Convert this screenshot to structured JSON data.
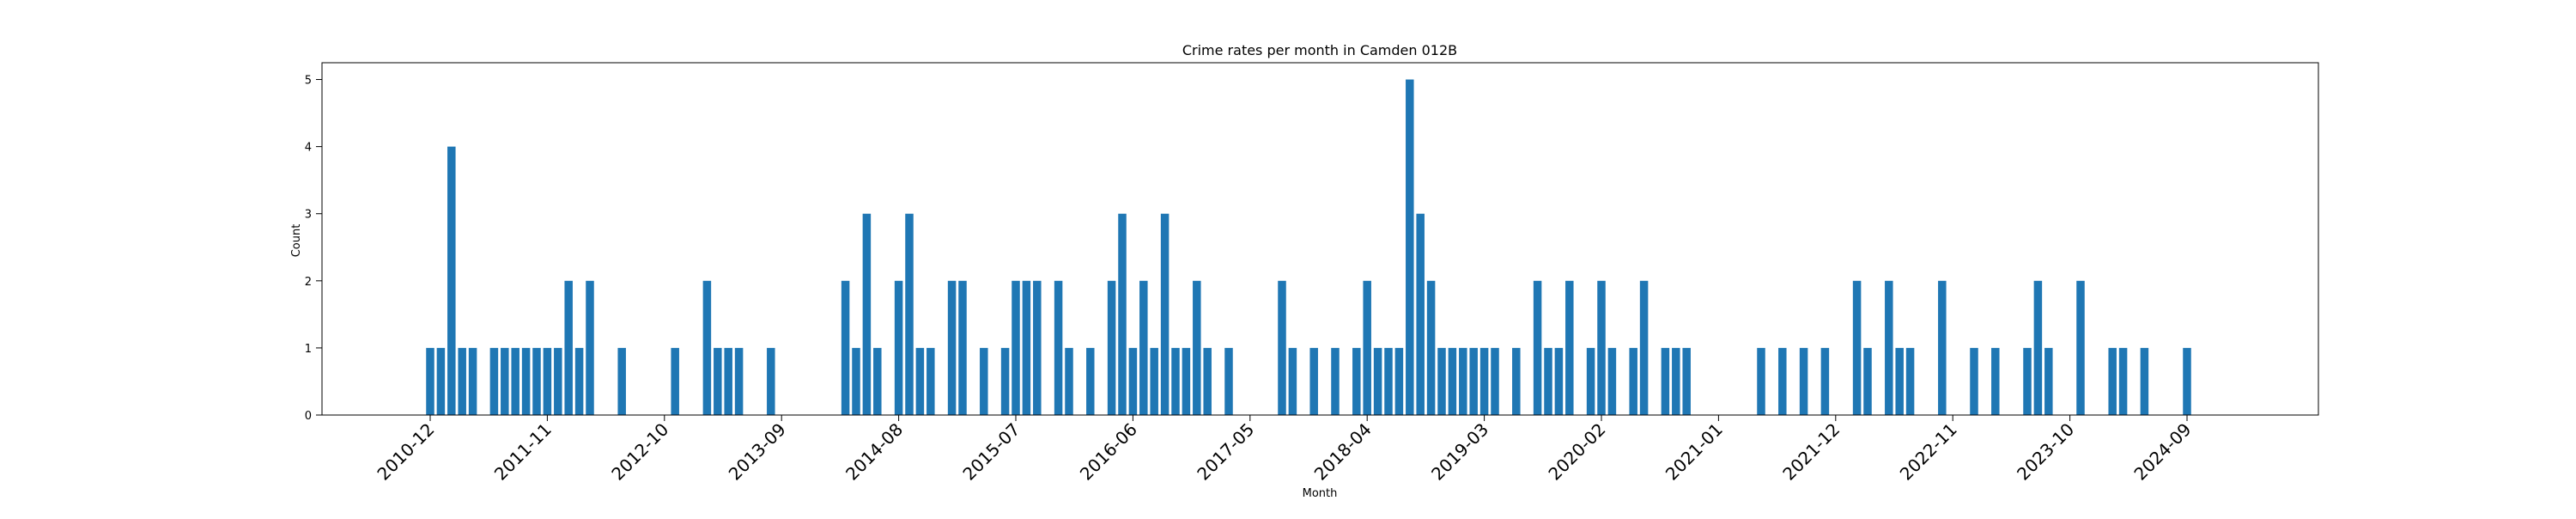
{
  "chart_data": {
    "type": "bar",
    "title": "Crime rates per month in Camden 012B",
    "xlabel": "Month",
    "ylabel": "Count",
    "ylim": [
      0,
      5.25
    ],
    "yticks": [
      0,
      1,
      2,
      3,
      4,
      5
    ],
    "xtick_labels": [
      "2010-12",
      "2011-11",
      "2012-10",
      "2013-09",
      "2014-08",
      "2015-07",
      "2016-06",
      "2017-05",
      "2018-04",
      "2019-03",
      "2020-02",
      "2021-01",
      "2021-12",
      "2022-11",
      "2023-10",
      "2024-09"
    ],
    "color": "#1f77b4",
    "grid": false,
    "series": [
      {
        "months": [
          "2010-12",
          "2011-01",
          "2011-02",
          "2011-03",
          "2011-04",
          "2011-06",
          "2011-07",
          "2011-08",
          "2011-09",
          "2011-10",
          "2011-11",
          "2011-12",
          "2012-01",
          "2012-02",
          "2012-03",
          "2012-06",
          "2012-11",
          "2013-02",
          "2013-03",
          "2013-04",
          "2013-05",
          "2013-08",
          "2014-03",
          "2014-04",
          "2014-05",
          "2014-06",
          "2014-08",
          "2014-09",
          "2014-10",
          "2014-11",
          "2015-01",
          "2015-02",
          "2015-04",
          "2015-06",
          "2015-07",
          "2015-08",
          "2015-09",
          "2015-11",
          "2015-12",
          "2016-02",
          "2016-04",
          "2016-05",
          "2016-06",
          "2016-07",
          "2016-08",
          "2016-09",
          "2016-10",
          "2016-11",
          "2016-12",
          "2017-01",
          "2017-03",
          "2017-08",
          "2017-09",
          "2017-11",
          "2018-01",
          "2018-03",
          "2018-04",
          "2018-05",
          "2018-06",
          "2018-07",
          "2018-08",
          "2018-09",
          "2018-10",
          "2018-11",
          "2018-12",
          "2019-01",
          "2019-02",
          "2019-03",
          "2019-04",
          "2019-06",
          "2019-08",
          "2019-09",
          "2019-10",
          "2019-11",
          "2020-01",
          "2020-02",
          "2020-03",
          "2020-05",
          "2020-06",
          "2020-08",
          "2020-09",
          "2020-10",
          "2021-05",
          "2021-07",
          "2021-09",
          "2021-11",
          "2022-02",
          "2022-03",
          "2022-05",
          "2022-06",
          "2022-07",
          "2022-10",
          "2023-01",
          "2023-03",
          "2023-06",
          "2023-07",
          "2023-08",
          "2023-11",
          "2024-02",
          "2024-03",
          "2024-05",
          "2024-09"
        ],
        "values": [
          1,
          1,
          4,
          1,
          1,
          1,
          1,
          1,
          1,
          1,
          1,
          1,
          2,
          1,
          2,
          1,
          1,
          2,
          1,
          1,
          1,
          1,
          2,
          1,
          3,
          1,
          2,
          3,
          1,
          1,
          2,
          2,
          1,
          1,
          2,
          2,
          2,
          2,
          1,
          1,
          2,
          3,
          1,
          2,
          1,
          3,
          1,
          1,
          2,
          1,
          1,
          2,
          1,
          1,
          1,
          1,
          2,
          1,
          1,
          1,
          5,
          3,
          2,
          1,
          1,
          1,
          1,
          1,
          1,
          1,
          2,
          1,
          1,
          2,
          1,
          2,
          1,
          1,
          2,
          1,
          1,
          1,
          1,
          1,
          1,
          1,
          2,
          1,
          2,
          1,
          1,
          2,
          1,
          1,
          1,
          2,
          1,
          2,
          1,
          1,
          1,
          1
        ]
      }
    ]
  }
}
